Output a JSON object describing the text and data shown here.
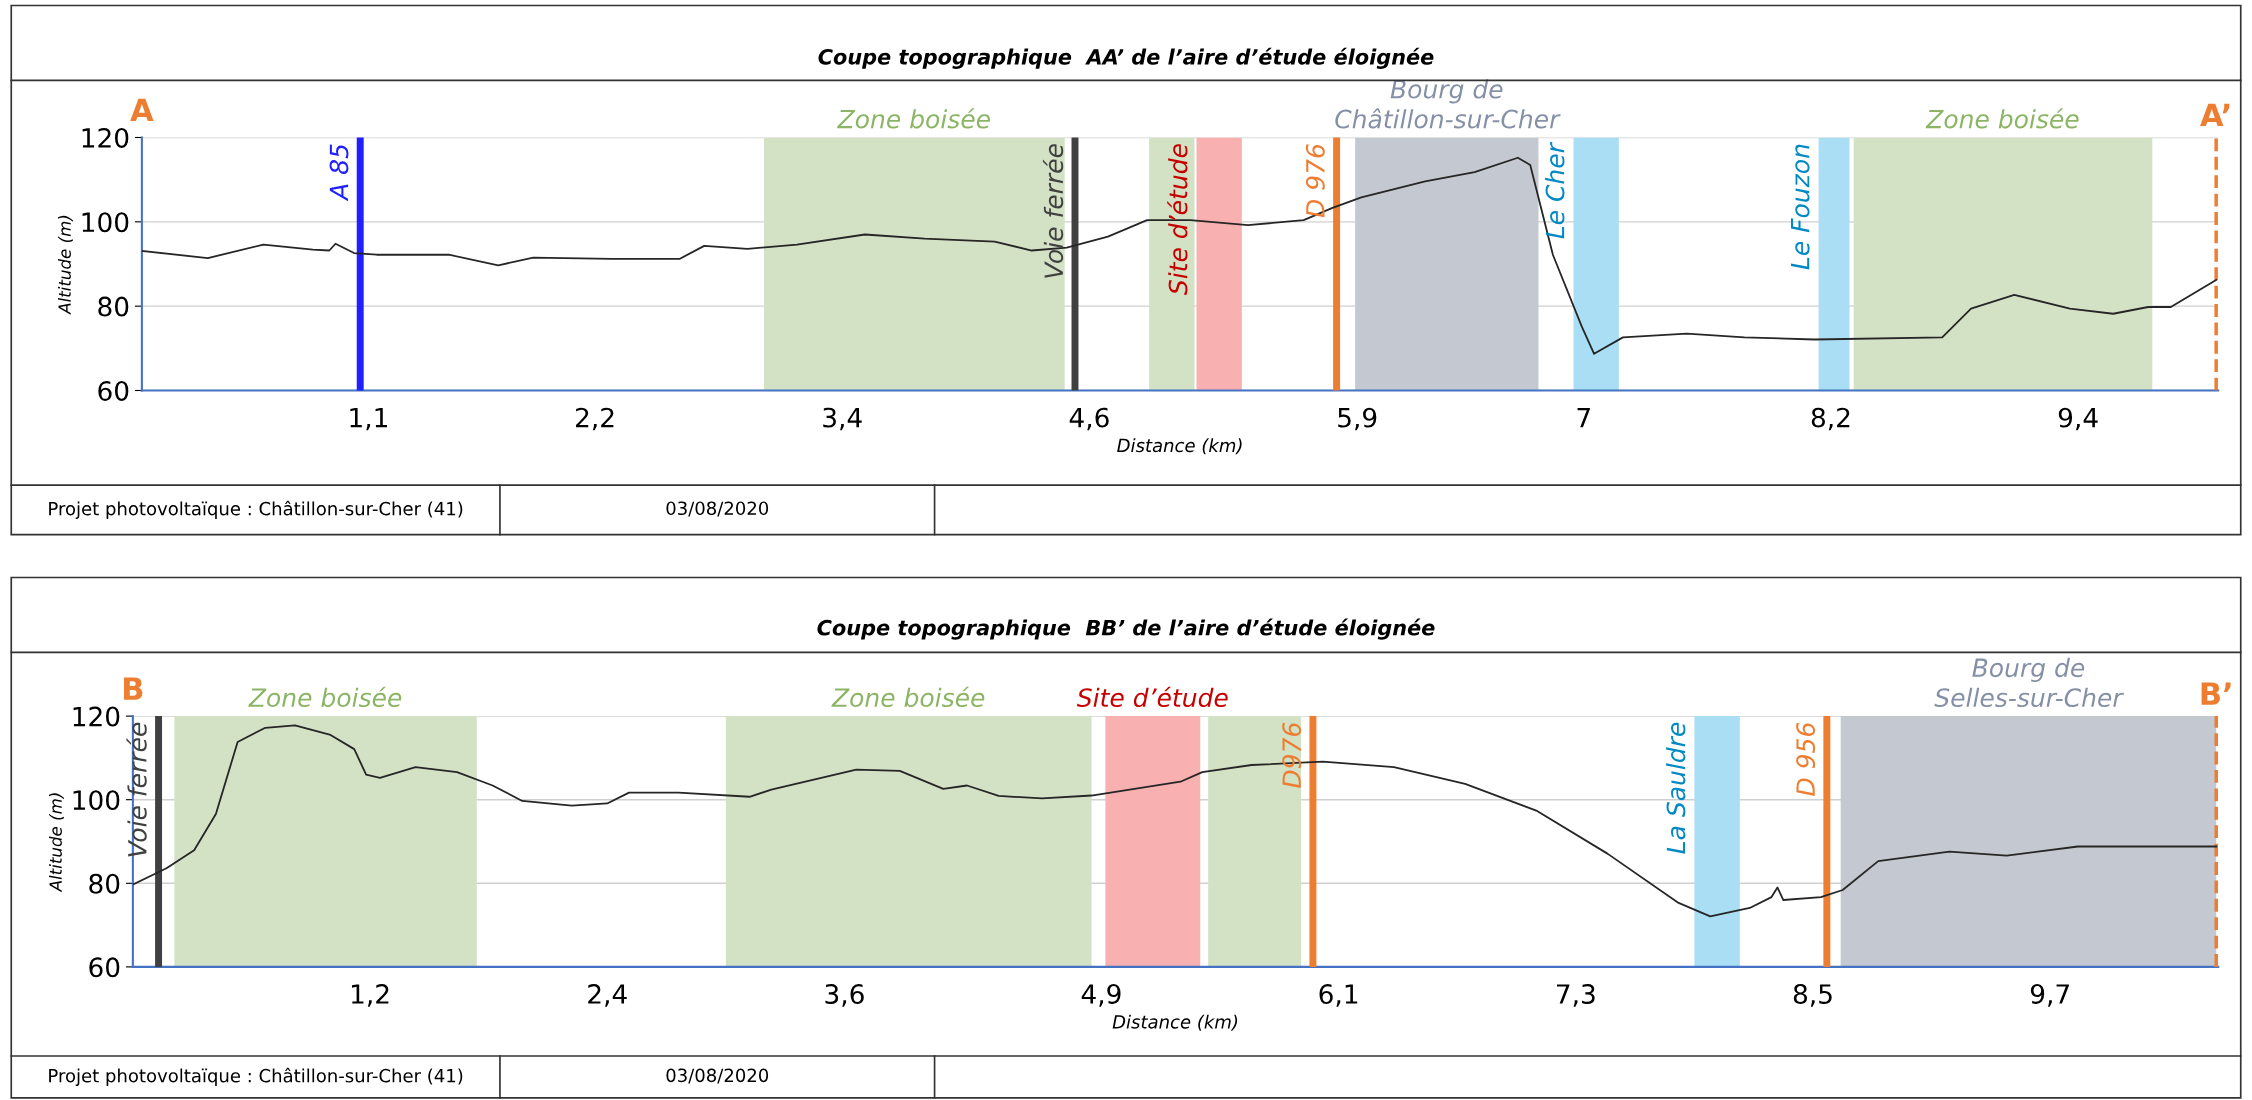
{
  "chart_data": [
    {
      "type": "line",
      "title": "Coupe topographique  AA’ de l’aire d’étude éloignée",
      "xlabel": "Distance (km)",
      "ylabel": "Altitude (m)",
      "x": [
        0,
        0.32,
        0.59,
        0.83,
        0.91,
        0.94,
        1.03,
        1.14,
        1.49,
        1.73,
        1.9,
        2.28,
        2.61,
        2.73,
        2.94,
        3.18,
        3.51,
        3.8,
        4.14,
        4.32,
        4.49,
        4.69,
        4.88,
        5.09,
        5.37,
        5.64,
        5.78,
        5.92,
        6.23,
        6.47,
        6.68,
        6.74,
        6.85,
        6.99,
        7.05,
        7.19,
        7.5,
        7.78,
        8.12,
        8.74,
        8.88,
        9.09,
        9.36,
        9.57,
        9.74,
        9.85,
        10.07
      ],
      "series": [
        {
          "color": "#262626",
          "values": [
            93.1,
            91.4,
            94.6,
            93.4,
            93.2,
            94.8,
            92.6,
            92.2,
            92.2,
            89.7,
            91.5,
            91.2,
            91.2,
            94.3,
            93.6,
            94.6,
            97.0,
            96.0,
            95.3,
            93.2,
            93.9,
            96.5,
            100.4,
            100.4,
            99.2,
            100.4,
            103.3,
            105.8,
            109.6,
            111.8,
            115.2,
            113.5,
            92.2,
            75.2,
            68.7,
            72.6,
            73.5,
            72.6,
            72.1,
            72.6,
            79.4,
            82.7,
            79.4,
            78.2,
            79.8,
            79.8,
            86.2
          ]
        }
      ],
      "xlim": [
        0,
        10.08
      ],
      "ylim": [
        60,
        120
      ],
      "xticks": [
        {
          "value": 1.1,
          "label": "1,1"
        },
        {
          "value": 2.2,
          "label": "2,2"
        },
        {
          "value": 3.4,
          "label": "3,4"
        },
        {
          "value": 4.6,
          "label": "4,6"
        },
        {
          "value": 5.9,
          "label": "5,9"
        },
        7,
        {
          "value": 8.2,
          "label": "8,2"
        },
        {
          "value": 9.4,
          "label": "9,4"
        }
      ],
      "yticks": [
        60,
        80,
        100,
        120
      ],
      "grid": "y",
      "ref_lines": [
        {
          "axis": "x",
          "value": 1.06,
          "label": "A 85",
          "color": "#1f1fff"
        },
        {
          "axis": "x",
          "value": 4.53,
          "label": "Voie ferrée",
          "color": "#404040"
        },
        {
          "axis": "x",
          "value": 5.8,
          "label": "D 976",
          "color": "#ed7d31"
        },
        {
          "axis": "x",
          "value": 10.07,
          "label": "A’",
          "color": "#ed7d31",
          "line_style": "dashed"
        }
      ],
      "bands": [
        {
          "axis": "x",
          "from": 3.02,
          "to": 4.48,
          "label": "Zone boisée",
          "color": "#d3e2c5"
        },
        {
          "axis": "x",
          "from": 4.89,
          "to": 5.11,
          "label": null,
          "color": "#d3e2c5"
        },
        {
          "axis": "x",
          "from": 5.12,
          "to": 5.34,
          "label": "Site d’étude",
          "color": "#f9b0b0"
        },
        {
          "axis": "x",
          "from": 5.89,
          "to": 6.78,
          "label": "Bourg de\nChâtillon-sur-Cher",
          "color": "#c4c8d0"
        },
        {
          "axis": "x",
          "from": 6.95,
          "to": 7.17,
          "label": "Le Cher",
          "color": "#a9def5"
        },
        {
          "axis": "x",
          "from": 8.14,
          "to": 8.29,
          "label": "Le Fouzon",
          "color": "#a9def5"
        },
        {
          "axis": "x",
          "from": 8.31,
          "to": 9.76,
          "label": "Zone boisée",
          "color": "#d3e2c5"
        }
      ],
      "annotations": [
        "A",
        "Projet photovoltaïque : Châtillon-sur-Cher (41)",
        "03/08/2020"
      ]
    },
    {
      "type": "line",
      "title": "Coupe topographique  BB’ de l’aire d’étude éloignée",
      "xlabel": "Distance (km)",
      "ylabel": "Altitude (m)",
      "x": [
        0,
        0.17,
        0.31,
        0.42,
        0.53,
        0.67,
        0.82,
        1.0,
        1.12,
        1.18,
        1.25,
        1.43,
        1.64,
        1.82,
        1.97,
        2.22,
        2.4,
        2.51,
        2.76,
        3.12,
        3.23,
        3.66,
        3.88,
        4.1,
        4.22,
        4.38,
        4.6,
        4.85,
        5.3,
        5.41,
        5.66,
        6.02,
        6.38,
        6.74,
        7.1,
        7.46,
        7.82,
        7.98,
        8.18,
        8.29,
        8.32,
        8.35,
        8.54,
        8.65,
        8.83,
        9.19,
        9.48,
        9.84,
        10.54
      ],
      "series": [
        {
          "color": "#262626",
          "values": [
            79.7,
            83.6,
            87.9,
            96.6,
            113.8,
            117.2,
            117.8,
            115.5,
            112.1,
            106.0,
            105.2,
            107.8,
            106.6,
            103.4,
            99.7,
            98.6,
            99.1,
            101.7,
            101.7,
            100.7,
            102.4,
            107.2,
            106.9,
            102.6,
            103.4,
            100.9,
            100.3,
            101.0,
            104.3,
            106.6,
            108.3,
            109.1,
            107.8,
            103.8,
            97.4,
            87.1,
            75.3,
            72.1,
            74.1,
            76.7,
            79.0,
            76.0,
            76.7,
            78.4,
            85.3,
            87.6,
            86.6,
            88.8,
            88.8
          ]
        }
      ],
      "xlim": [
        0,
        10.55
      ],
      "ylim": [
        60,
        120
      ],
      "xticks": [
        {
          "value": 1.2,
          "label": "1,2"
        },
        {
          "value": 2.4,
          "label": "2,4"
        },
        {
          "value": 3.6,
          "label": "3,6"
        },
        {
          "value": 4.9,
          "label": "4,9"
        },
        {
          "value": 6.1,
          "label": "6,1"
        },
        {
          "value": 7.3,
          "label": "7,3"
        },
        {
          "value": 8.5,
          "label": "8,5"
        },
        {
          "value": 9.7,
          "label": "9,7"
        }
      ],
      "yticks": [
        60,
        80,
        100,
        120
      ],
      "grid": "y",
      "ref_lines": [
        {
          "axis": "x",
          "value": 0.13,
          "label": "Voie ferrée",
          "color": "#404040"
        },
        {
          "axis": "x",
          "value": 5.97,
          "label": "D976",
          "color": "#ed7d31"
        },
        {
          "axis": "x",
          "value": 8.57,
          "label": "D 956",
          "color": "#ed7d31"
        },
        {
          "axis": "x",
          "value": 10.54,
          "label": "B’",
          "color": "#ed7d31",
          "line_style": "dashed"
        }
      ],
      "bands": [
        {
          "axis": "x",
          "from": 0.21,
          "to": 1.74,
          "label": "Zone boisée",
          "color": "#d3e2c5"
        },
        {
          "axis": "x",
          "from": 3.0,
          "to": 4.85,
          "label": "Zone boisée",
          "color": "#d3e2c5"
        },
        {
          "axis": "x",
          "from": 4.92,
          "to": 5.4,
          "label": "Site d’étude",
          "color": "#f9b0b0"
        },
        {
          "axis": "x",
          "from": 5.44,
          "to": 5.91,
          "label": null,
          "color": "#d3e2c5"
        },
        {
          "axis": "x",
          "from": 7.9,
          "to": 8.13,
          "label": "La Sauldre",
          "color": "#a9def5"
        },
        {
          "axis": "x",
          "from": 8.64,
          "to": 10.54,
          "label": "Bourg de\nSelles-sur-Cher",
          "color": "#c4c8d0"
        }
      ],
      "annotations": [
        "B",
        "Projet photovoltaïque : Châtillon-sur-Cher (41)",
        "03/08/2020"
      ]
    }
  ]
}
